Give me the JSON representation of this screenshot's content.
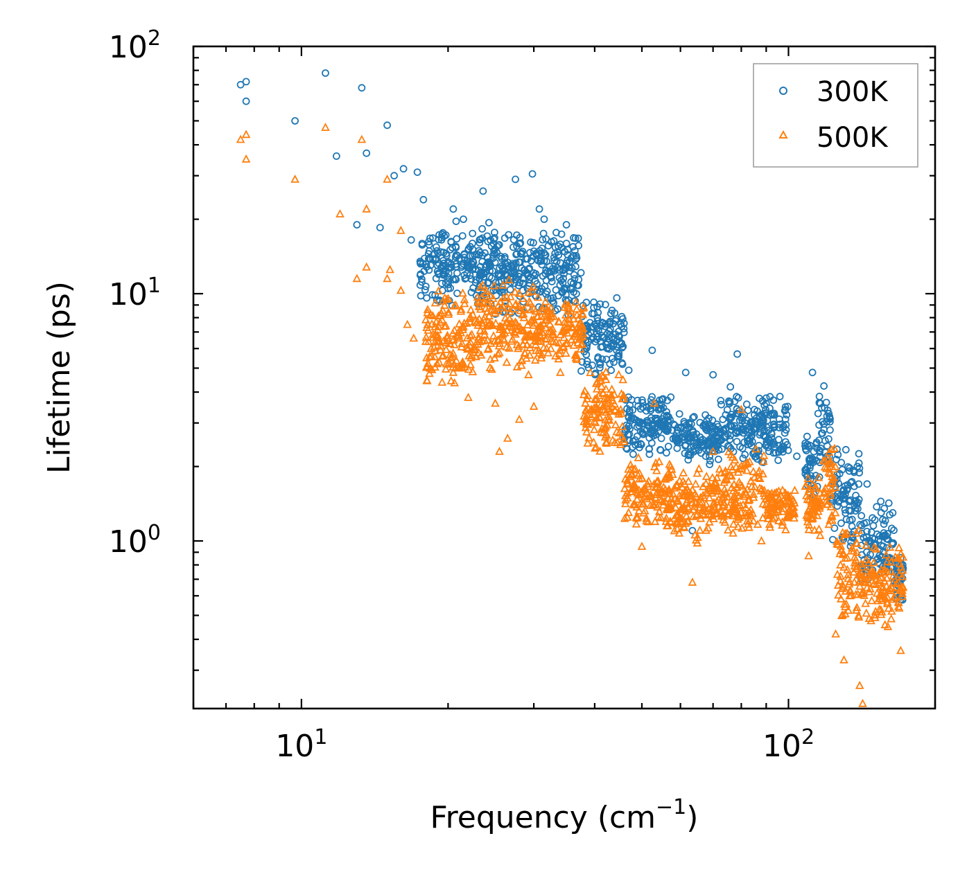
{
  "chart_data": {
    "type": "scatter",
    "title": "",
    "xlabel": "Frequency (cm",
    "xlabel_sup": "−1",
    "xlabel_end": ")",
    "ylabel": "Lifetime (ps)",
    "xscale": "log",
    "yscale": "log",
    "xlim": [
      6.0,
      200.0
    ],
    "ylim": [
      0.21,
      100.0
    ],
    "grid": false,
    "legend_position": "top-right",
    "xticks": [
      {
        "value": 10,
        "base": "10",
        "exp": "1"
      },
      {
        "value": 100,
        "base": "10",
        "exp": "2"
      }
    ],
    "yticks": [
      {
        "value": 1,
        "base": "10",
        "exp": "0"
      },
      {
        "value": 10,
        "base": "10",
        "exp": "1"
      },
      {
        "value": 100,
        "base": "10",
        "exp": "2"
      }
    ],
    "series": [
      {
        "name": "300K",
        "marker": "circle",
        "color": "#1f77b4",
        "points": [
          [
            7.5,
            70
          ],
          [
            7.7,
            72
          ],
          [
            7.7,
            60
          ],
          [
            9.7,
            50
          ],
          [
            11.2,
            78
          ],
          [
            11.8,
            36
          ],
          [
            13.3,
            68
          ],
          [
            13.6,
            37
          ],
          [
            15.0,
            48
          ],
          [
            15.5,
            30
          ],
          [
            16.2,
            32
          ],
          [
            17.3,
            31
          ],
          [
            17.8,
            24
          ],
          [
            20.5,
            22
          ],
          [
            21.5,
            20
          ],
          [
            23.6,
            26
          ],
          [
            27.5,
            29
          ],
          [
            29.8,
            30.5
          ],
          [
            30.8,
            22
          ],
          [
            31.5,
            20
          ],
          [
            35.0,
            19
          ],
          [
            36.2,
            11
          ],
          [
            44.5,
            6.5
          ],
          [
            52.5,
            5.9
          ],
          [
            61.5,
            4.8
          ],
          [
            70.0,
            4.7
          ],
          [
            78.5,
            5.7
          ],
          [
            112.0,
            4.8
          ],
          [
            14.5,
            18.5
          ],
          [
            13.0,
            19
          ],
          [
            16.8,
            16.5
          ],
          [
            19.5,
            13
          ],
          [
            22.0,
            15
          ],
          [
            28.0,
            12
          ],
          [
            33.0,
            14
          ],
          [
            40.5,
            8
          ],
          [
            47.0,
            4.9
          ],
          [
            49.0,
            3.7
          ],
          [
            55.0,
            2.9
          ],
          [
            63.5,
            1.1
          ],
          [
            76.0,
            4.2
          ],
          [
            90.0,
            3.6
          ],
          [
            104.0,
            2.2
          ],
          [
            130.0,
            1.6
          ],
          [
            145.0,
            1.7
          ],
          [
            155.0,
            1.3
          ],
          [
            162.0,
            0.85
          ],
          [
            170.0,
            0.58
          ]
        ],
        "bands": [
          {
            "x0": 17.5,
            "x1": 25.0,
            "y0": 8.5,
            "y1": 20
          },
          {
            "x0": 25.0,
            "x1": 37.5,
            "y0": 8.0,
            "y1": 19
          },
          {
            "x0": 37.5,
            "x1": 46.0,
            "y0": 4.5,
            "y1": 10
          },
          {
            "x0": 46.0,
            "x1": 58.0,
            "y0": 2.2,
            "y1": 4.0
          },
          {
            "x0": 58.0,
            "x1": 72.0,
            "y0": 2.0,
            "y1": 3.3
          },
          {
            "x0": 72.0,
            "x1": 100.0,
            "y0": 2.0,
            "y1": 4.0
          },
          {
            "x0": 108.0,
            "x1": 115.0,
            "y0": 1.4,
            "y1": 2.8
          },
          {
            "x0": 115.0,
            "x1": 122.0,
            "y0": 1.7,
            "y1": 4.5
          },
          {
            "x0": 122.0,
            "x1": 140.0,
            "y0": 0.9,
            "y1": 2.5
          },
          {
            "x0": 140.0,
            "x1": 165.0,
            "y0": 0.65,
            "y1": 1.5
          },
          {
            "x0": 165.0,
            "x1": 172.0,
            "y0": 0.55,
            "y1": 0.9
          }
        ]
      },
      {
        "name": "500K",
        "marker": "triangle",
        "color": "#ff7f0e",
        "points": [
          [
            7.5,
            42
          ],
          [
            7.7,
            44
          ],
          [
            7.7,
            35
          ],
          [
            9.7,
            29
          ],
          [
            11.2,
            47
          ],
          [
            12.0,
            21
          ],
          [
            13.3,
            42
          ],
          [
            13.6,
            22
          ],
          [
            13.0,
            11.5
          ],
          [
            13.6,
            12.8
          ],
          [
            15.0,
            29
          ],
          [
            15.0,
            11.5
          ],
          [
            15.2,
            12.5
          ],
          [
            16.0,
            10.3
          ],
          [
            16.5,
            7.5
          ],
          [
            16.0,
            18
          ],
          [
            17.0,
            6.6
          ],
          [
            18.0,
            6.4
          ],
          [
            19.0,
            5.2
          ],
          [
            20.5,
            4.8
          ],
          [
            22.0,
            3.8
          ],
          [
            25.0,
            3.6
          ],
          [
            25.5,
            2.3
          ],
          [
            26.5,
            2.6
          ],
          [
            28.0,
            3.1
          ],
          [
            30.0,
            3.5
          ],
          [
            34.0,
            4.8
          ],
          [
            38.0,
            3.9
          ],
          [
            44.0,
            2.5
          ],
          [
            48.0,
            1.4
          ],
          [
            50.0,
            0.95
          ],
          [
            53.0,
            3.6
          ],
          [
            63.5,
            0.68
          ],
          [
            60.0,
            1.2
          ],
          [
            65.0,
            0.98
          ],
          [
            70.0,
            2.3
          ],
          [
            80.0,
            3.4
          ],
          [
            88.0,
            1.0
          ],
          [
            100.0,
            1.5
          ],
          [
            103.0,
            1.6
          ],
          [
            110.0,
            0.87
          ],
          [
            125.0,
            0.42
          ],
          [
            130.0,
            0.33
          ],
          [
            140.0,
            0.26
          ],
          [
            142.0,
            0.22
          ],
          [
            160.0,
            0.45
          ],
          [
            170.0,
            0.36
          ]
        ],
        "bands": [
          {
            "x0": 18.0,
            "x1": 23.0,
            "y0": 4.0,
            "y1": 11
          },
          {
            "x0": 23.0,
            "x1": 30.0,
            "y0": 4.5,
            "y1": 12
          },
          {
            "x0": 30.0,
            "x1": 38.0,
            "y0": 5.0,
            "y1": 10
          },
          {
            "x0": 38.0,
            "x1": 46.0,
            "y0": 2.2,
            "y1": 5.0
          },
          {
            "x0": 46.0,
            "x1": 58.0,
            "y0": 1.1,
            "y1": 2.2
          },
          {
            "x0": 58.0,
            "x1": 70.0,
            "y0": 1.0,
            "y1": 2.0
          },
          {
            "x0": 70.0,
            "x1": 90.0,
            "y0": 1.0,
            "y1": 2.4
          },
          {
            "x0": 90.0,
            "x1": 103.0,
            "y0": 1.1,
            "y1": 1.7
          },
          {
            "x0": 108.0,
            "x1": 118.0,
            "y0": 0.95,
            "y1": 1.9
          },
          {
            "x0": 118.0,
            "x1": 125.0,
            "y0": 1.0,
            "y1": 2.6
          },
          {
            "x0": 125.0,
            "x1": 140.0,
            "y0": 0.42,
            "y1": 1.2
          },
          {
            "x0": 140.0,
            "x1": 172.0,
            "y0": 0.45,
            "y1": 1.0
          }
        ]
      }
    ]
  }
}
